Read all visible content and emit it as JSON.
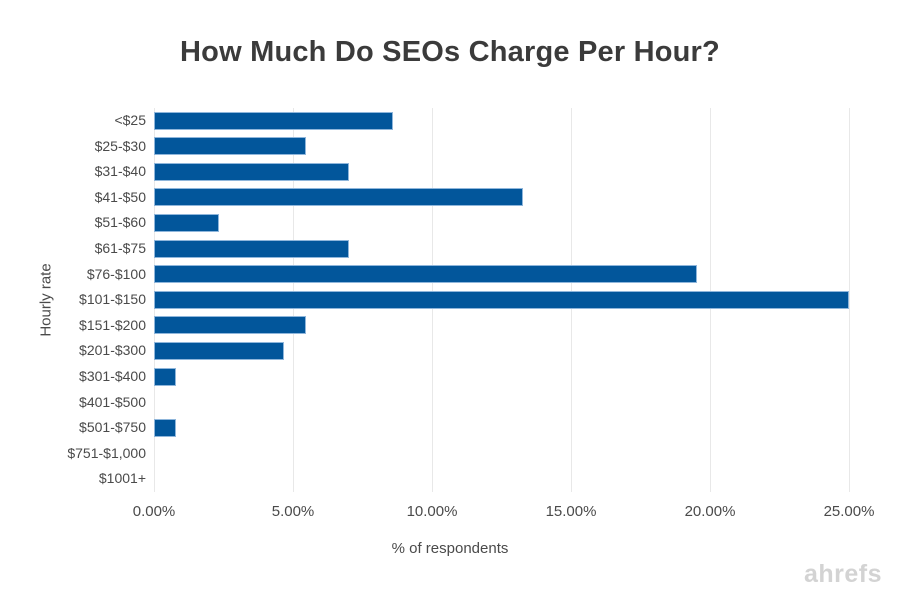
{
  "page": {
    "watermark": "ahrefs"
  },
  "chart_data": {
    "type": "bar",
    "orientation": "horizontal",
    "title": "How Much Do SEOs Charge Per Hour?",
    "xlabel": "% of respondents",
    "ylabel": "Hourly rate",
    "categories": [
      "<$25",
      "$25-$30",
      "$31-$40",
      "$41-$50",
      "$51-$60",
      "$61-$75",
      "$76-$100",
      "$101-$150",
      "$151-$200",
      "$201-$300",
      "$301-$400",
      "$401-$500",
      "$501-$750",
      "$751-$1,000",
      "$1001+"
    ],
    "values": [
      8.59,
      5.47,
      7.03,
      13.28,
      2.34,
      7.03,
      19.53,
      25.0,
      5.47,
      4.69,
      0.78,
      0,
      0.78,
      0,
      0
    ],
    "xlim": [
      0,
      25
    ],
    "x_ticks": [
      {
        "value": 0,
        "label": "0.00%"
      },
      {
        "value": 5,
        "label": "5.00%"
      },
      {
        "value": 10,
        "label": "10.00%"
      },
      {
        "value": 15,
        "label": "15.00%"
      },
      {
        "value": 20,
        "label": "20.00%"
      },
      {
        "value": 25,
        "label": "25.00%"
      }
    ],
    "grid": "vertical-gridlines-only",
    "legend": "none",
    "colors": {
      "background": "#ffffff",
      "bar": "#02569b",
      "bar_border": "#8fb6db",
      "gridline": "#e8e8e8",
      "title": "#3b3b3b",
      "text": "#4a4a4a",
      "watermark": "#d3d3d3"
    }
  }
}
